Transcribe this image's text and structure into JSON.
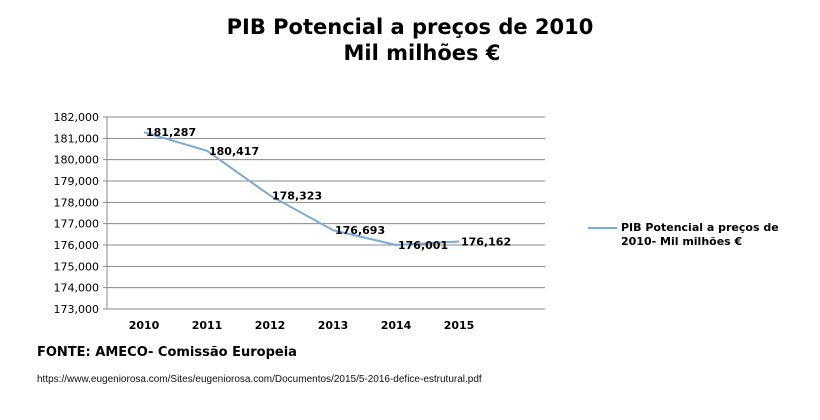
{
  "chart_data": {
    "type": "line",
    "title": "PIB Potencial a preços de 2010",
    "subtitle": "Mil milhões €",
    "categories": [
      "2010",
      "2011",
      "2012",
      "2013",
      "2014",
      "2015"
    ],
    "series": [
      {
        "name": "PIB Potencial  a preços de 2010- Mil milhões €",
        "values": [
          181287,
          180417,
          178323,
          176693,
          176001,
          176162
        ],
        "labels": [
          "181,287",
          "180,417",
          "178,323",
          "176,693",
          "176,001",
          "176,162"
        ],
        "color": "#7aaad8"
      }
    ],
    "yticks": [
      "173,000",
      "174,000",
      "175,000",
      "176,000",
      "177,000",
      "178,000",
      "179,000",
      "180,000",
      "181,000",
      "182,000"
    ],
    "ylim": [
      173000,
      182000
    ],
    "grid": true,
    "legend": "right"
  },
  "legend": {
    "line1": "PIB Potencial  a preços de",
    "line2": "2010- Mil milhões €"
  },
  "source": "FONTE: AMECO- Comissão Europeia",
  "url": "https://www.eugeniorosa.com/Sites/eugeniorosa.com/Documentos/2015/5-2016-defice-estrutural.pdf"
}
